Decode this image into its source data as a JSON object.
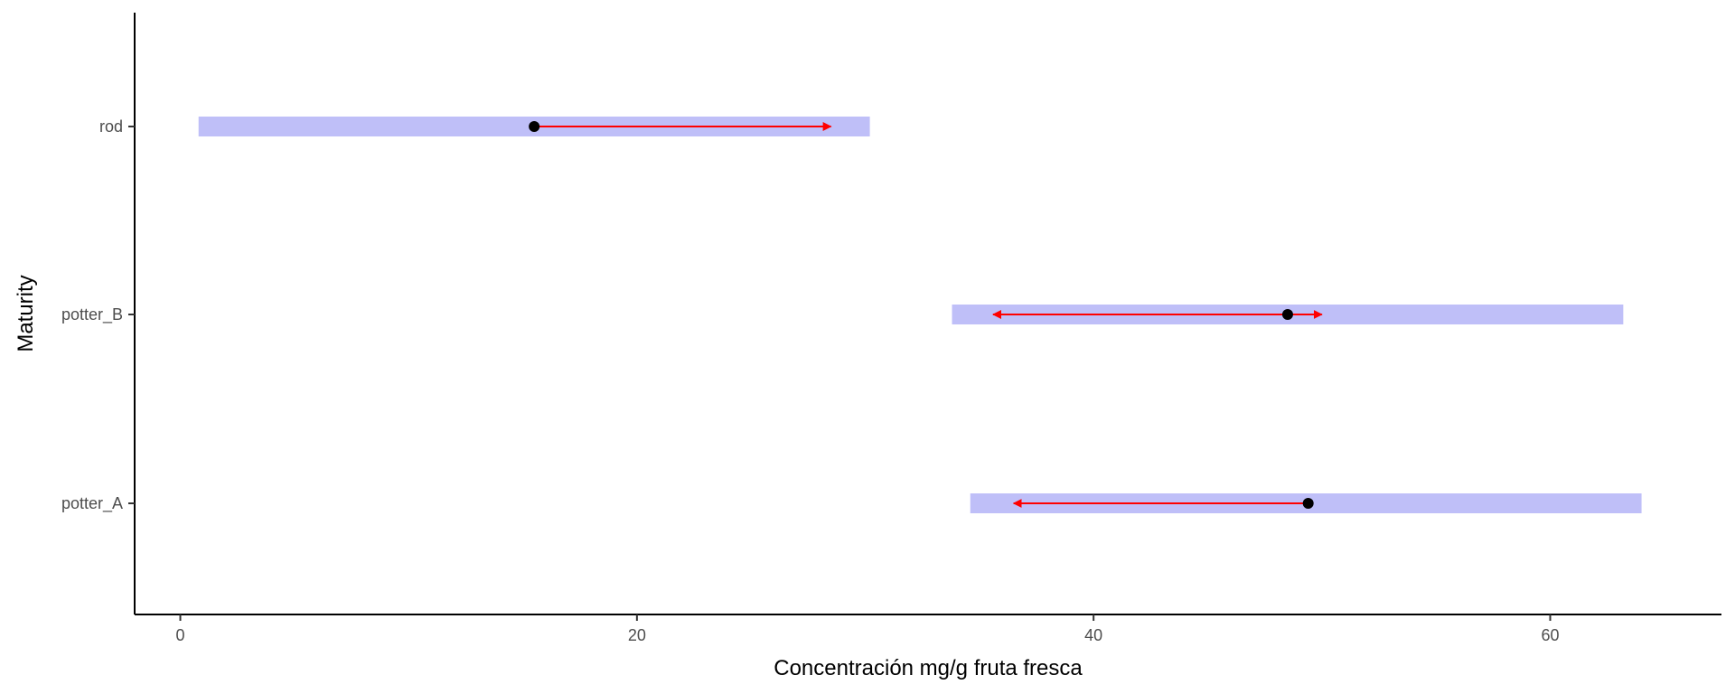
{
  "chart_data": {
    "type": "range-arrow",
    "title": "",
    "xlabel": "Concentración mg/g fruta fresca",
    "ylabel": "Maturity",
    "xlim": [
      -2,
      67.5
    ],
    "xticks": [
      0,
      20,
      40,
      60
    ],
    "xtick_labels": [
      "0",
      "20",
      "40",
      "60"
    ],
    "categories": [
      "rod",
      "potter_B",
      "potter_A"
    ],
    "ranges": [
      {
        "category": "rod",
        "low": 0.8,
        "high": 30.2
      },
      {
        "category": "potter_B",
        "low": 33.8,
        "high": 63.2
      },
      {
        "category": "potter_A",
        "low": 34.6,
        "high": 64.0
      }
    ],
    "points": [
      {
        "category": "rod",
        "value": 15.5
      },
      {
        "category": "potter_B",
        "value": 48.5
      },
      {
        "category": "potter_A",
        "value": 49.4
      }
    ],
    "arrows": [
      {
        "category": "rod",
        "from": 15.5,
        "to": 28.5,
        "direction": "right"
      },
      {
        "category": "potter_B",
        "from": 35.6,
        "to": 50.0,
        "direction": "both"
      },
      {
        "category": "potter_A",
        "from": 49.4,
        "to": 36.5,
        "direction": "left"
      }
    ],
    "grid": false,
    "legend": "none",
    "colors": {
      "range": "#bfbff8",
      "arrow": "#ff0000",
      "point": "#000000",
      "axis": "#000000"
    }
  }
}
